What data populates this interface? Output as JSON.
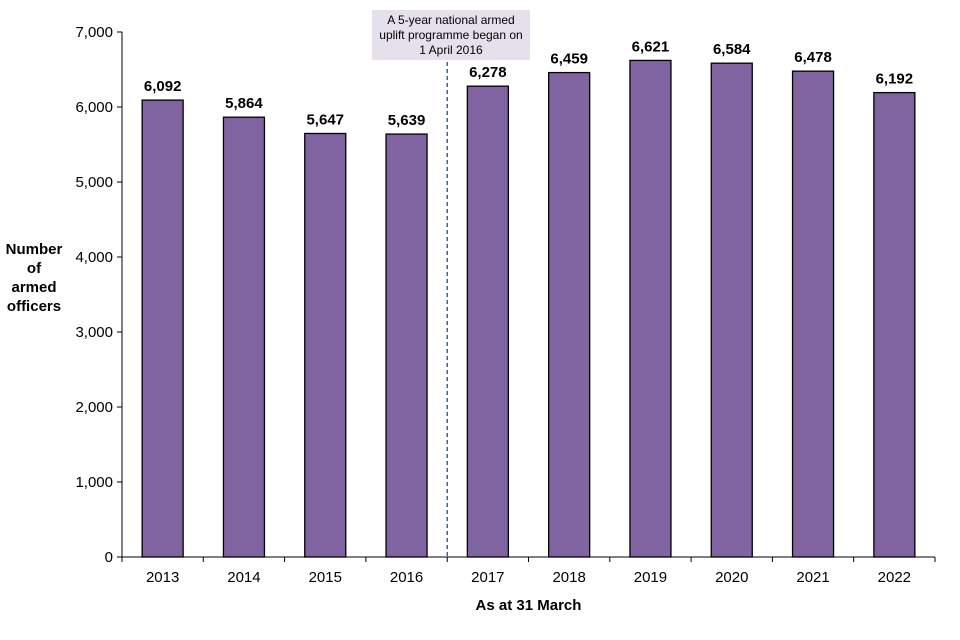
{
  "chart_data": {
    "type": "bar",
    "categories": [
      "2013",
      "2014",
      "2015",
      "2016",
      "2017",
      "2018",
      "2019",
      "2020",
      "2021",
      "2022"
    ],
    "values": [
      6092,
      5864,
      5647,
      5639,
      6278,
      6459,
      6621,
      6584,
      6478,
      6192
    ],
    "value_labels": [
      "6,092",
      "5,864",
      "5,647",
      "5,639",
      "6,278",
      "6,459",
      "6,621",
      "6,584",
      "6,478",
      "6,192"
    ],
    "ylim": [
      0,
      7000
    ],
    "yticks": [
      0,
      1000,
      2000,
      3000,
      4000,
      5000,
      6000,
      7000
    ],
    "ytick_labels": [
      "0",
      "1,000",
      "2,000",
      "3,000",
      "4,000",
      "5,000",
      "6,000",
      "7,000"
    ],
    "xlabel": "As at 31 March",
    "ylabel_lines": [
      "Number",
      "of",
      "armed",
      "officers"
    ],
    "grid": false,
    "bar_color": "#8064a2",
    "annotation": {
      "text": "A 5-year national armed uplift programme began on 1 April 2016",
      "after_category": "2016",
      "background": "#e6e0ec"
    }
  }
}
